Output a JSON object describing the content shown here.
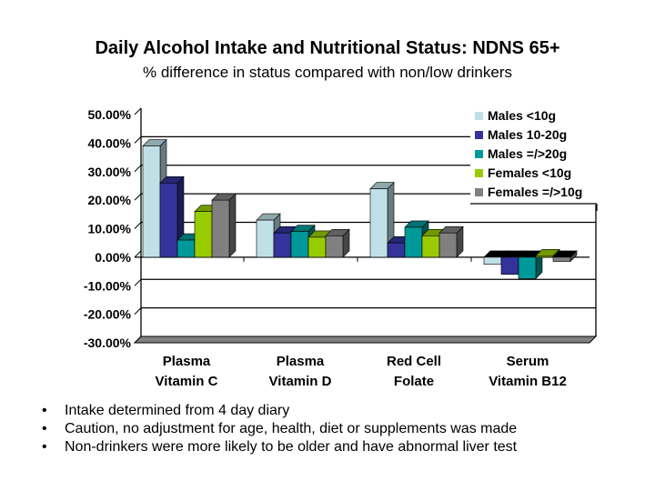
{
  "chart_data": {
    "type": "bar",
    "title": "Daily Alcohol Intake and Nutritional Status: NDNS 65+",
    "subtitle": "% difference in status compared with non/low drinkers",
    "categories": [
      [
        "Plasma",
        "Vitamin C"
      ],
      [
        "Plasma",
        "Vitamin D"
      ],
      [
        "Red Cell",
        "Folate"
      ],
      [
        "Serum",
        "Vitamin B12"
      ]
    ],
    "series": [
      {
        "name": "Males <10g",
        "color": "#BFE0E6",
        "values": [
          39,
          13,
          24,
          -2.5
        ]
      },
      {
        "name": "Males 10-20g",
        "color": "#333399",
        "values": [
          26,
          8.5,
          5,
          -6
        ]
      },
      {
        "name": "Males =/>20g",
        "color": "#009999",
        "values": [
          6,
          9,
          10.5,
          -7.5
        ]
      },
      {
        "name": "Females <10g",
        "color": "#99CC00",
        "values": [
          16,
          7,
          7.5,
          0.5
        ]
      },
      {
        "name": "Females =/>10g",
        "color": "#808080",
        "values": [
          20,
          7.5,
          8.5,
          -1.5
        ]
      }
    ],
    "yticks": [
      "50.00%",
      "40.00%",
      "30.00%",
      "20.00%",
      "10.00%",
      "0.00%",
      "-10.00%",
      "-20.00%",
      "-30.00%"
    ],
    "ylim": [
      -30,
      50
    ],
    "grid": true,
    "legend": "top-right",
    "style": "3d-clustered-column"
  },
  "notes": [
    "Intake determined from 4 day diary",
    "Caution, no adjustment for age, health, diet or supplements was made",
    "Non-drinkers were more likely to be older and have abnormal liver test"
  ],
  "bullet": "•"
}
